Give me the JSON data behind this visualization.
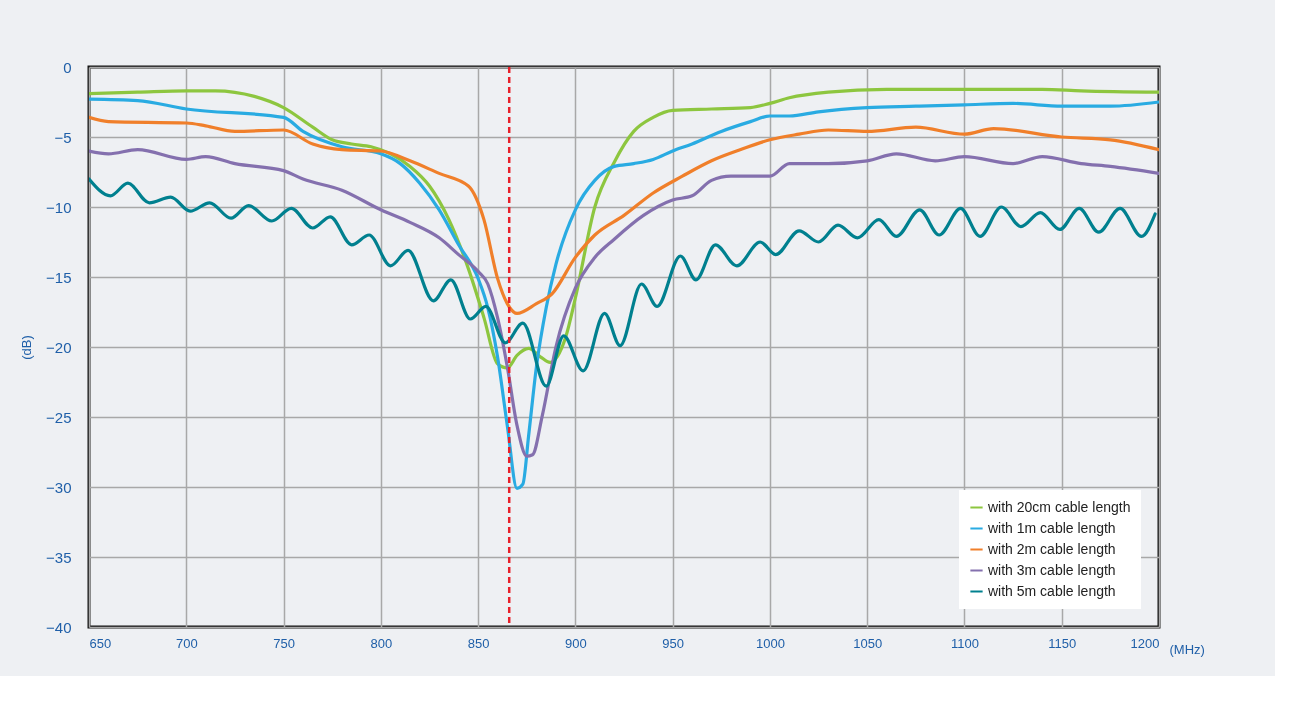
{
  "chart_data": {
    "type": "line",
    "xlabel": "(MHz)",
    "ylabel": "(dB)",
    "xlim": [
      650,
      1200
    ],
    "ylim": [
      -40,
      0
    ],
    "xticks": [
      650,
      700,
      750,
      800,
      850,
      900,
      950,
      1000,
      1050,
      1100,
      1150,
      1200
    ],
    "yticks": [
      -40,
      -35,
      -30,
      -25,
      -20,
      -15,
      -10,
      -5,
      0
    ],
    "grid": true,
    "legend": "bottom right",
    "ref_lines": [
      {
        "axis": "x",
        "value": 866,
        "color": "#e8202a",
        "line_style": "dashed"
      }
    ],
    "series": [
      {
        "name": "with 20cm cable length",
        "color": "#8dc63f",
        "x": [
          650,
          675,
          700,
          715,
          735,
          750,
          765,
          775,
          785,
          795,
          805,
          815,
          825,
          835,
          845,
          853,
          860,
          865,
          870,
          876,
          882,
          887,
          895,
          900,
          910,
          920,
          930,
          940,
          950,
          970,
          990,
          1000,
          1010,
          1030,
          1060,
          1100,
          1140,
          1160,
          1200
        ],
        "values": [
          -1.9,
          -1.8,
          -1.7,
          -1.7,
          -2.1,
          -2.9,
          -4.3,
          -5.2,
          -5.5,
          -5.7,
          -6.2,
          -7.1,
          -8.5,
          -10.9,
          -14.4,
          -17.9,
          -21.2,
          -21.5,
          -20.6,
          -20.1,
          -20.7,
          -21.1,
          -19.3,
          -16.5,
          -10,
          -6.8,
          -4.6,
          -3.6,
          -3.1,
          -3.0,
          -2.9,
          -2.6,
          -2.2,
          -1.8,
          -1.6,
          -1.6,
          -1.6,
          -1.7,
          -1.8
        ]
      },
      {
        "name": "with 1m cable length",
        "color": "#29abe2",
        "x": [
          650,
          675,
          700,
          750,
          760,
          780,
          800,
          810,
          820,
          830,
          840,
          850,
          855,
          860,
          865,
          870,
          873,
          876,
          880,
          885,
          890,
          900,
          910,
          920,
          930,
          940,
          950,
          960,
          975,
          990,
          1000,
          1010,
          1025,
          1050,
          1075,
          1100,
          1125,
          1150,
          1175,
          1200
        ],
        "values": [
          -2.3,
          -2.4,
          -3.0,
          -3.6,
          -4.6,
          -5.7,
          -6.2,
          -6.9,
          -8.3,
          -10.2,
          -12.7,
          -15.1,
          -17.2,
          -20.7,
          -25.6,
          -30.1,
          -29.8,
          -26.3,
          -21.4,
          -17.2,
          -14.1,
          -10.2,
          -8.1,
          -7.1,
          -6.9,
          -6.6,
          -6.0,
          -5.5,
          -4.6,
          -3.9,
          -3.5,
          -3.5,
          -3.2,
          -2.9,
          -2.8,
          -2.7,
          -2.6,
          -2.8,
          -2.8,
          -2.5
        ]
      },
      {
        "name": "with 2m cable length",
        "color": "#f07f2a",
        "x": [
          650,
          660,
          700,
          710,
          725,
          750,
          765,
          780,
          800,
          815,
          830,
          845,
          853,
          860,
          865,
          870,
          880,
          888,
          900,
          910,
          925,
          940,
          955,
          970,
          985,
          1000,
          1015,
          1030,
          1050,
          1075,
          1100,
          1115,
          1150,
          1175,
          1200
        ],
        "values": [
          -3.6,
          -3.9,
          -4.0,
          -4.2,
          -4.6,
          -4.5,
          -5.5,
          -5.9,
          -6.0,
          -6.7,
          -7.6,
          -8.5,
          -10.9,
          -15.1,
          -16.9,
          -17.6,
          -16.9,
          -16.2,
          -13.6,
          -12.0,
          -10.6,
          -9.0,
          -7.8,
          -6.7,
          -5.9,
          -5.2,
          -4.8,
          -4.5,
          -4.6,
          -4.3,
          -4.8,
          -4.4,
          -5.0,
          -5.2,
          -5.9
        ]
      },
      {
        "name": "with 3m cable length",
        "color": "#8470ae",
        "x": [
          650,
          660,
          675,
          700,
          710,
          725,
          750,
          760,
          780,
          800,
          815,
          830,
          840,
          850,
          855,
          860,
          865,
          870,
          875,
          878,
          883,
          890,
          900,
          910,
          920,
          935,
          950,
          960,
          970,
          980,
          1000,
          1010,
          1030,
          1050,
          1065,
          1085,
          1100,
          1125,
          1140,
          1160,
          1175,
          1200
        ],
        "values": [
          -6.0,
          -6.2,
          -5.9,
          -6.6,
          -6.4,
          -6.9,
          -7.4,
          -8.0,
          -8.8,
          -10.2,
          -11.1,
          -12.2,
          -13.4,
          -14.6,
          -15.5,
          -17.9,
          -21.4,
          -25.6,
          -27.8,
          -27.7,
          -24.9,
          -20.0,
          -15.8,
          -13.6,
          -12.3,
          -10.6,
          -9.5,
          -9.2,
          -8.1,
          -7.8,
          -7.8,
          -6.9,
          -6.9,
          -6.7,
          -6.2,
          -6.7,
          -6.4,
          -6.9,
          -6.4,
          -6.9,
          -7.1,
          -7.6
        ]
      },
      {
        "name": "with 5m cable length",
        "color": "#00808f",
        "x": [
          650,
          661,
          670,
          681,
          692,
          702,
          712,
          723,
          732,
          744,
          754,
          765,
          774,
          785,
          794,
          805,
          814,
          827,
          836,
          846,
          854,
          864,
          873,
          885,
          894,
          904,
          915,
          923,
          934,
          942,
          954,
          962,
          972,
          983,
          995,
          1003,
          1015,
          1025,
          1035,
          1045,
          1056,
          1065,
          1077,
          1087,
          1098,
          1108,
          1119,
          1129,
          1139,
          1149,
          1159,
          1169,
          1180,
          1191,
          1198
        ],
        "values": [
          -8.0,
          -9.2,
          -8.3,
          -9.7,
          -9.3,
          -10.3,
          -9.7,
          -10.8,
          -9.9,
          -11.0,
          -10.1,
          -11.5,
          -10.7,
          -12.7,
          -12.0,
          -14.2,
          -13.1,
          -16.7,
          -15.2,
          -18.0,
          -17.1,
          -19.7,
          -18.3,
          -22.8,
          -19.2,
          -21.7,
          -17.6,
          -19.9,
          -15.5,
          -17.1,
          -13.5,
          -15.2,
          -12.7,
          -14.2,
          -12.5,
          -13.4,
          -11.7,
          -12.5,
          -11.3,
          -12.2,
          -10.9,
          -12.1,
          -10.2,
          -12.0,
          -10.1,
          -12.1,
          -10.0,
          -11.4,
          -10.4,
          -11.6,
          -10.1,
          -11.8,
          -10.1,
          -12.1,
          -10.5
        ]
      }
    ]
  }
}
